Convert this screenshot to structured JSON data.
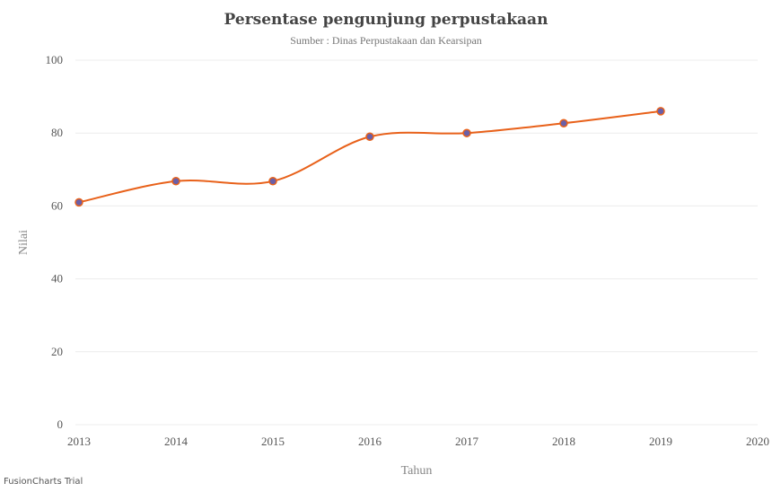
{
  "chart_data": {
    "type": "line",
    "title": "Persentase pengunjung perpustakaan",
    "subtitle": "Sumber : Dinas Perpustakaan dan Kearsipan",
    "xlabel": "Tahun",
    "ylabel": "Nilai",
    "x_ticks": [
      "2013",
      "2014",
      "2015",
      "2016",
      "2017",
      "2018",
      "2019",
      "2020"
    ],
    "y_ticks": [
      "0",
      "20",
      "40",
      "60",
      "80",
      "100"
    ],
    "xlim": [
      2013,
      2020
    ],
    "ylim": [
      0,
      100
    ],
    "grid": true,
    "series": [
      {
        "x": [
          2013,
          2014,
          2015,
          2016,
          2017,
          2018,
          2019
        ],
        "values": [
          61,
          66.8,
          66.8,
          79,
          80,
          82.7,
          86
        ],
        "line_color": "#E8611A",
        "marker_fill": "#6A5FA8",
        "marker_stroke": "#E8611A"
      }
    ]
  },
  "watermark": "FusionCharts Trial"
}
